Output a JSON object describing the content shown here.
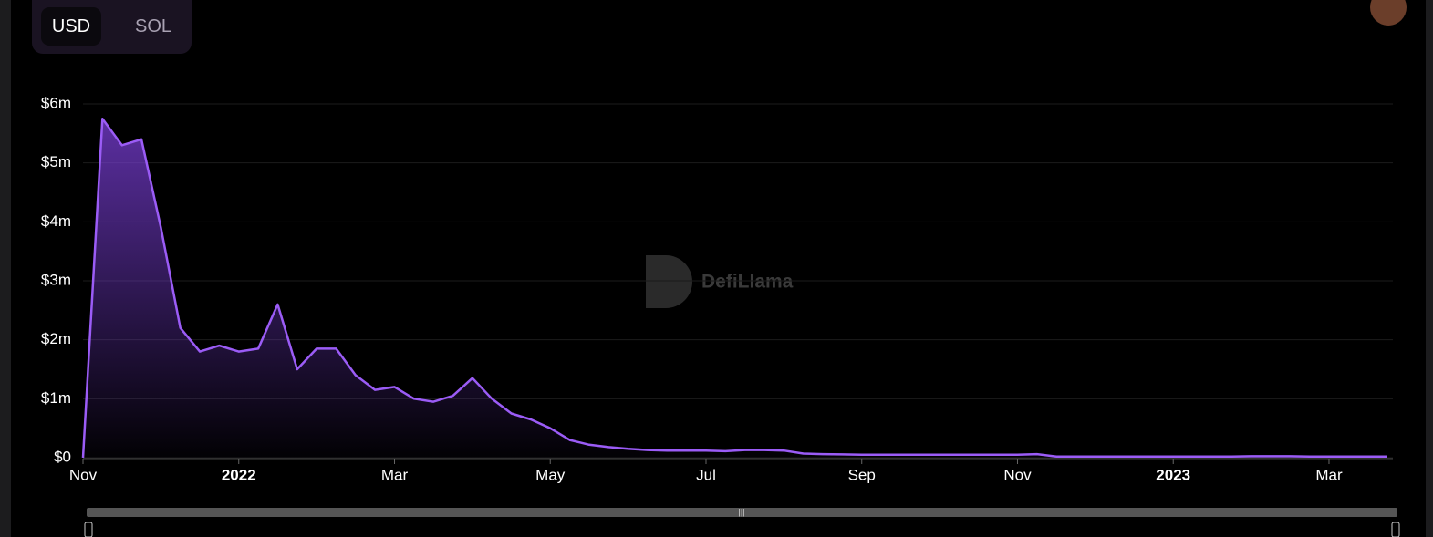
{
  "toggle": {
    "options": [
      "USD",
      "SOL"
    ]
  },
  "watermark": "DefiLlama",
  "chart_data": {
    "type": "line",
    "categories": [
      "Nov",
      null,
      null,
      null,
      null,
      null,
      null,
      null,
      "2022",
      null,
      null,
      null,
      null,
      null,
      null,
      null,
      "Mar",
      null,
      null,
      null,
      null,
      null,
      null,
      null,
      "May",
      null,
      null,
      null,
      null,
      null,
      null,
      null,
      "Jul",
      null,
      null,
      null,
      null,
      null,
      null,
      null,
      "Sep",
      null,
      null,
      null,
      null,
      null,
      null,
      null,
      "Nov",
      null,
      null,
      null,
      null,
      null,
      null,
      null,
      "2023",
      null,
      null,
      null,
      null,
      null,
      null,
      null,
      "Mar",
      null,
      null,
      null
    ],
    "values": [
      0,
      5750000,
      5300000,
      5400000,
      3900000,
      2200000,
      1800000,
      1900000,
      1800000,
      1850000,
      2600000,
      1500000,
      1850000,
      1850000,
      1400000,
      1150000,
      1200000,
      1000000,
      950000,
      1050000,
      1350000,
      1000000,
      750000,
      650000,
      500000,
      300000,
      220000,
      180000,
      150000,
      130000,
      120000,
      120000,
      120000,
      110000,
      130000,
      130000,
      120000,
      70000,
      60000,
      55000,
      50000,
      50000,
      50000,
      50000,
      50000,
      50000,
      50000,
      50000,
      50000,
      60000,
      20000,
      20000,
      20000,
      20000,
      20000,
      20000,
      20000,
      20000,
      20000,
      20000,
      25000,
      25000,
      25000,
      20000,
      20000,
      20000,
      20000,
      20000
    ],
    "color": "#9b5cf6",
    "ylim": [
      0,
      6000000
    ],
    "yticks": [
      {
        "value": 0,
        "label": "$0"
      },
      {
        "value": 1000000,
        "label": "$1m"
      },
      {
        "value": 2000000,
        "label": "$2m"
      },
      {
        "value": 3000000,
        "label": "$3m"
      },
      {
        "value": 4000000,
        "label": "$4m"
      },
      {
        "value": 5000000,
        "label": "$5m"
      },
      {
        "value": 6000000,
        "label": "$6m"
      }
    ],
    "grid": true
  }
}
